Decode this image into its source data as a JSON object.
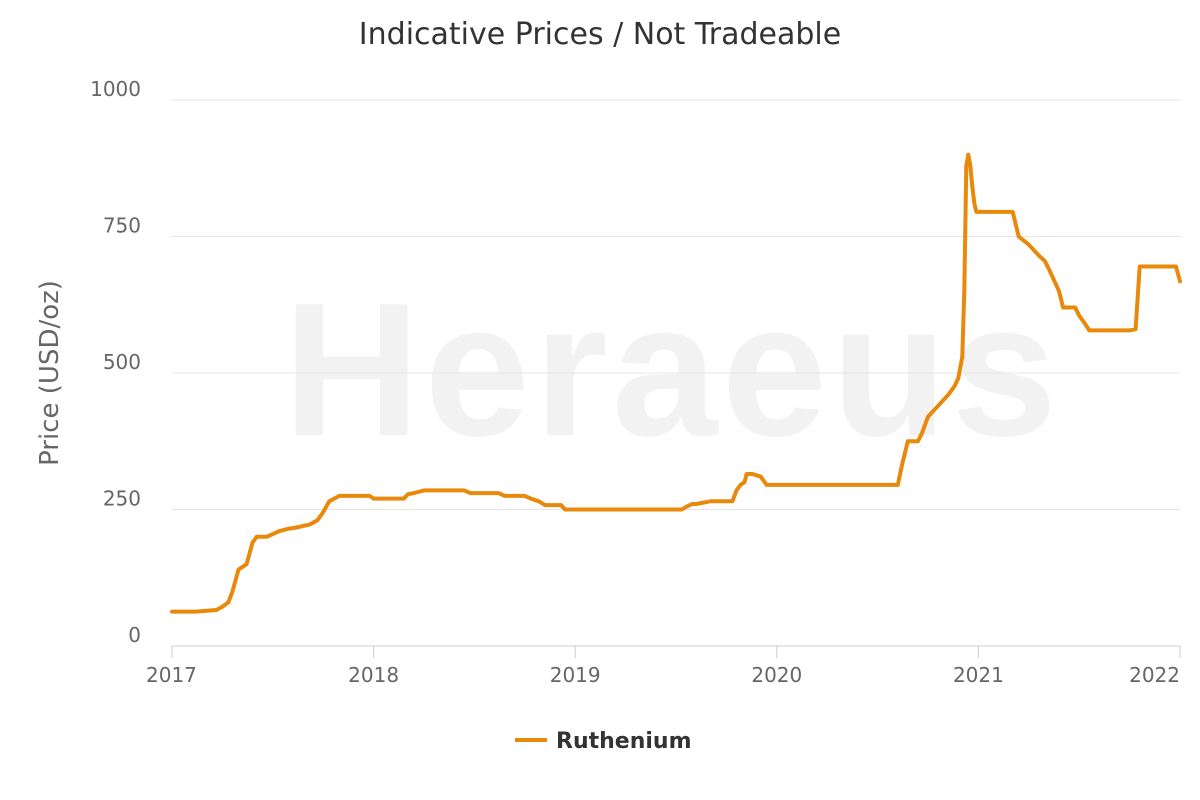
{
  "chart_data": {
    "type": "line",
    "title": "Indicative Prices / Not Tradeable",
    "watermark": "Heraeus",
    "ylabel": "Price (USD/oz)",
    "xlabel": "",
    "ylim": [
      0,
      1000
    ],
    "yticks": [
      0,
      250,
      500,
      750,
      1000
    ],
    "xlim": [
      2017.0,
      2022.0
    ],
    "xticks": [
      {
        "value": 2017,
        "label": "2017"
      },
      {
        "value": 2018,
        "label": "2018"
      },
      {
        "value": 2019,
        "label": "2019"
      },
      {
        "value": 2020,
        "label": "2020"
      },
      {
        "value": 2021,
        "label": "2021"
      },
      {
        "value": 2022,
        "label": "2022"
      }
    ],
    "grid": true,
    "legend": "bottom-center",
    "colors": {
      "series": "#e8890c",
      "grid": "#e6e6e6",
      "axis": "#cccccc"
    },
    "series": [
      {
        "name": "Ruthenium",
        "x": [
          2017.0,
          2017.12,
          2017.15,
          2017.22,
          2017.25,
          2017.28,
          2017.3,
          2017.33,
          2017.35,
          2017.37,
          2017.4,
          2017.42,
          2017.45,
          2017.47,
          2017.5,
          2017.53,
          2017.55,
          2017.58,
          2017.6,
          2017.63,
          2017.65,
          2017.68,
          2017.7,
          2017.72,
          2017.75,
          2017.78,
          2017.83,
          2017.85,
          2017.88,
          2017.9,
          2017.98,
          2018.0,
          2018.03,
          2018.15,
          2018.17,
          2018.2,
          2018.22,
          2018.25,
          2018.45,
          2018.48,
          2018.62,
          2018.65,
          2018.75,
          2018.78,
          2018.82,
          2018.85,
          2018.93,
          2018.95,
          2019.0,
          2019.53,
          2019.55,
          2019.58,
          2019.6,
          2019.67,
          2019.68,
          2019.78,
          2019.8,
          2019.82,
          2019.84,
          2019.85,
          2019.88,
          2019.92,
          2019.95,
          2019.98,
          2020.58,
          2020.6,
          2020.62,
          2020.63,
          2020.65,
          2020.7,
          2020.72,
          2020.75,
          2020.8,
          2020.85,
          2020.88,
          2020.9,
          2020.92,
          2020.93,
          2020.94,
          2020.95,
          2020.96,
          2020.97,
          2020.98,
          2020.99,
          2021.0,
          2021.02,
          2021.17,
          2021.2,
          2021.25,
          2021.3,
          2021.33,
          2021.35,
          2021.4,
          2021.42,
          2021.48,
          2021.5,
          2021.52,
          2021.53,
          2021.55,
          2021.6,
          2021.65,
          2021.7,
          2021.75,
          2021.78,
          2021.8,
          2021.82,
          2021.98,
          2022.0
        ],
        "values": [
          63,
          63,
          64,
          66,
          72,
          80,
          100,
          140,
          145,
          150,
          190,
          200,
          200,
          200,
          205,
          210,
          212,
          215,
          216,
          218,
          220,
          222,
          226,
          230,
          245,
          265,
          275,
          275,
          275,
          275,
          275,
          270,
          270,
          270,
          278,
          280,
          282,
          285,
          285,
          280,
          280,
          275,
          275,
          270,
          265,
          258,
          258,
          250,
          250,
          250,
          255,
          260,
          260,
          265,
          265,
          265,
          285,
          295,
          300,
          315,
          315,
          310,
          295,
          295,
          295,
          295,
          330,
          345,
          375,
          375,
          390,
          420,
          440,
          460,
          475,
          490,
          530,
          650,
          880,
          900,
          880,
          840,
          810,
          795,
          795,
          795,
          795,
          750,
          735,
          715,
          705,
          690,
          650,
          620,
          620,
          605,
          595,
          590,
          578,
          578,
          578,
          578,
          578,
          580,
          695,
          695,
          695,
          668
        ]
      }
    ]
  }
}
